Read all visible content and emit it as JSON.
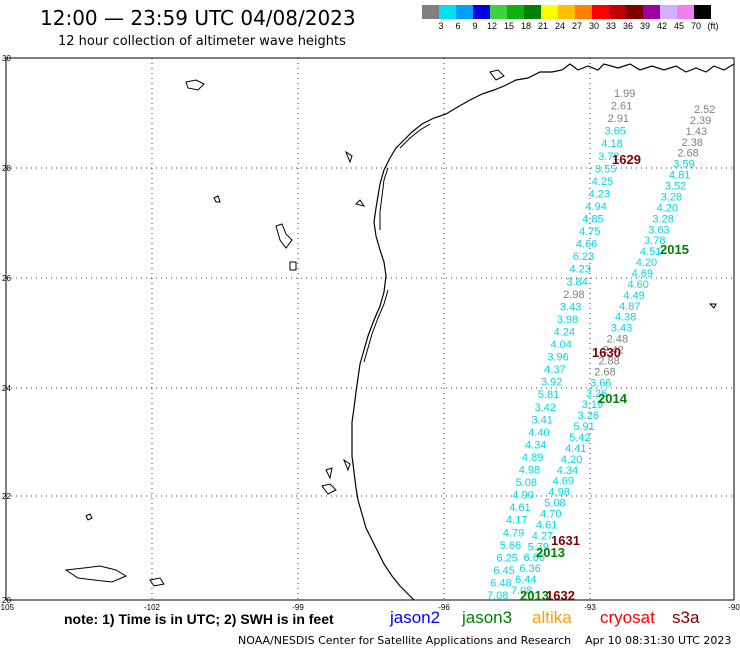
{
  "header": {
    "title": "12:00 — 23:59 UTC 04/08/2023",
    "subtitle": "12 hour collection of altimeter wave heights"
  },
  "color_scale": {
    "colors": [
      "#808080",
      "#00e0f0",
      "#00a0ff",
      "#0000e0",
      "#40d040",
      "#10b010",
      "#008000",
      "#ffff00",
      "#ffc000",
      "#ff8000",
      "#ff0000",
      "#c00000",
      "#800000",
      "#a000a0",
      "#d0b0ff",
      "#f080f0",
      "#000000"
    ],
    "labels": [
      "3",
      "6",
      "9",
      "12",
      "15",
      "18",
      "21",
      "24",
      "27",
      "30",
      "33",
      "36",
      "39",
      "42",
      "45",
      "70",
      "(ft)"
    ]
  },
  "axes": {
    "lon_labels": [
      "-105",
      "-102",
      "-99",
      "-96",
      "-93",
      "-90"
    ],
    "lat_labels": [
      "30",
      "28",
      "26",
      "24",
      "22",
      "20"
    ]
  },
  "passes": [
    {
      "label": "1629",
      "color": "#800000"
    },
    {
      "label": "2015",
      "color": "#008000"
    },
    {
      "label": "1630",
      "color": "#800000"
    },
    {
      "label": "2014",
      "color": "#008000"
    },
    {
      "label": "1631",
      "color": "#800000"
    },
    {
      "label": "2013",
      "color": "#008000"
    },
    {
      "label": "2013",
      "color": "#008000"
    },
    {
      "label": "1632",
      "color": "#800000"
    }
  ],
  "track_values": [
    {
      "v": "1.99",
      "c": "#808080"
    },
    {
      "v": "2.61",
      "c": "#808080"
    },
    {
      "v": "2.91",
      "c": "#808080"
    },
    {
      "v": "3.65",
      "c": "#00d8e8"
    },
    {
      "v": "4.18",
      "c": "#00d8e8"
    },
    {
      "v": "3.72",
      "c": "#00d8e8"
    },
    {
      "v": "3.55",
      "c": "#00d8e8"
    },
    {
      "v": "4.25",
      "c": "#00d8e8"
    },
    {
      "v": "4.23",
      "c": "#00d8e8"
    },
    {
      "v": "4.94",
      "c": "#00d8e8"
    },
    {
      "v": "4.85",
      "c": "#00d8e8"
    },
    {
      "v": "4.75",
      "c": "#00d8e8"
    },
    {
      "v": "4.66",
      "c": "#00d8e8"
    },
    {
      "v": "6.23",
      "c": "#00d8e8"
    },
    {
      "v": "4.23",
      "c": "#00d8e8"
    },
    {
      "v": "3.84",
      "c": "#00d8e8"
    },
    {
      "v": "2.98",
      "c": "#808080"
    },
    {
      "v": "3.43",
      "c": "#00d8e8"
    },
    {
      "v": "3.98",
      "c": "#00d8e8"
    },
    {
      "v": "4.24",
      "c": "#00d8e8"
    },
    {
      "v": "4.04",
      "c": "#00d8e8"
    },
    {
      "v": "3.96",
      "c": "#00d8e8"
    },
    {
      "v": "4.37",
      "c": "#00d8e8"
    },
    {
      "v": "3.92",
      "c": "#00d8e8"
    },
    {
      "v": "5.81",
      "c": "#00d8e8"
    },
    {
      "v": "3.42",
      "c": "#00d8e8"
    },
    {
      "v": "3.41",
      "c": "#00d8e8"
    },
    {
      "v": "4.40",
      "c": "#00d8e8"
    },
    {
      "v": "4.34",
      "c": "#00d8e8"
    },
    {
      "v": "4.89",
      "c": "#00d8e8"
    },
    {
      "v": "4.98",
      "c": "#00d8e8"
    },
    {
      "v": "5.08",
      "c": "#00d8e8"
    },
    {
      "v": "4.90",
      "c": "#00d8e8"
    },
    {
      "v": "4.61",
      "c": "#00d8e8"
    },
    {
      "v": "4.17",
      "c": "#00d8e8"
    },
    {
      "v": "4.79",
      "c": "#00d8e8"
    },
    {
      "v": "5.66",
      "c": "#00d8e8"
    },
    {
      "v": "6.25",
      "c": "#00d8e8"
    },
    {
      "v": "6.45",
      "c": "#00d8e8"
    },
    {
      "v": "6.48",
      "c": "#00d8e8"
    },
    {
      "v": "7.08",
      "c": "#00d8e8"
    }
  ],
  "track2_values": [
    {
      "v": "2.52",
      "c": "#808080"
    },
    {
      "v": "2.39",
      "c": "#808080"
    },
    {
      "v": "1.43",
      "c": "#808080"
    },
    {
      "v": "2.38",
      "c": "#808080"
    },
    {
      "v": "2.68",
      "c": "#808080"
    },
    {
      "v": "3.59",
      "c": "#00d8e8"
    },
    {
      "v": "4.81",
      "c": "#00d8e8"
    },
    {
      "v": "3.52",
      "c": "#00d8e8"
    },
    {
      "v": "3.28",
      "c": "#00d8e8"
    },
    {
      "v": "4.20",
      "c": "#00d8e8"
    },
    {
      "v": "3.28",
      "c": "#00d8e8"
    },
    {
      "v": "3.63",
      "c": "#00d8e8"
    },
    {
      "v": "3.78",
      "c": "#00d8e8"
    },
    {
      "v": "4.51",
      "c": "#00d8e8"
    },
    {
      "v": "4.20",
      "c": "#00d8e8"
    },
    {
      "v": "4.69",
      "c": "#00d8e8"
    },
    {
      "v": "4.60",
      "c": "#00d8e8"
    },
    {
      "v": "4.49",
      "c": "#00d8e8"
    },
    {
      "v": "4.87",
      "c": "#00d8e8"
    },
    {
      "v": "4.38",
      "c": "#00d8e8"
    },
    {
      "v": "3.43",
      "c": "#00d8e8"
    },
    {
      "v": "2.48",
      "c": "#808080"
    },
    {
      "v": "2.42",
      "c": "#808080"
    },
    {
      "v": "2.88",
      "c": "#808080"
    },
    {
      "v": "2.68",
      "c": "#808080"
    },
    {
      "v": "3.66",
      "c": "#00d8e8"
    },
    {
      "v": "3.26",
      "c": "#00d8e8"
    },
    {
      "v": "3.19",
      "c": "#00d8e8"
    },
    {
      "v": "3.26",
      "c": "#00d8e8"
    },
    {
      "v": "5.91",
      "c": "#00d8e8"
    },
    {
      "v": "5.42",
      "c": "#00d8e8"
    },
    {
      "v": "4.41",
      "c": "#00d8e8"
    },
    {
      "v": "4.20",
      "c": "#00d8e8"
    },
    {
      "v": "4.34",
      "c": "#00d8e8"
    },
    {
      "v": "4.69",
      "c": "#00d8e8"
    },
    {
      "v": "4.98",
      "c": "#00d8e8"
    },
    {
      "v": "5.08",
      "c": "#00d8e8"
    },
    {
      "v": "4.70",
      "c": "#00d8e8"
    },
    {
      "v": "4.61",
      "c": "#00d8e8"
    },
    {
      "v": "4.27",
      "c": "#00d8e8"
    },
    {
      "v": "5.79",
      "c": "#00d8e8"
    },
    {
      "v": "6.66",
      "c": "#00d8e8"
    },
    {
      "v": "6.36",
      "c": "#00d8e8"
    },
    {
      "v": "6.44",
      "c": "#00d8e8"
    },
    {
      "v": "7.08",
      "c": "#00d8e8"
    }
  ],
  "footer": {
    "note": "note: 1) Time is in UTC; 2) SWH is in feet",
    "credit": "NOAA/NESDIS Center for Satellite Applications and Research    Apr 10 08:31:30 UTC 2023"
  },
  "legend": [
    {
      "name": "jason2",
      "color": "#0000ff"
    },
    {
      "name": "jason3",
      "color": "#008000"
    },
    {
      "name": "altika",
      "color": "#ffa000"
    },
    {
      "name": "cryosat",
      "color": "#ff0000"
    },
    {
      "name": "s3a",
      "color": "#800000"
    }
  ]
}
